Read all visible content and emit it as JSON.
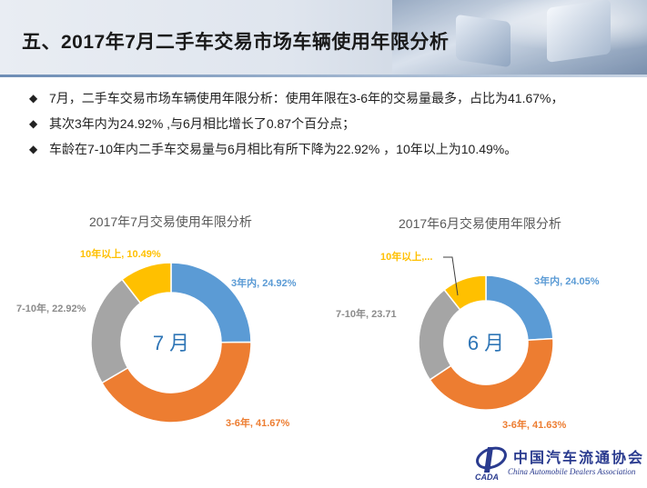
{
  "title": "五、2017年7月二手车交易市场车辆使用年限分析",
  "bullets": [
    "7月，二手车交易市场车辆使用年限分析：使用年限在3-6年的交易量最多，占比为41.67%，",
    "其次3年内为24.92% ,与6月相比增长了0.87个百分点；",
    "车龄在7-10年内二手车交易量与6月相比有所下降为22.92% ，10年以上为10.49%。"
  ],
  "bullet_icon": "◆",
  "colors": {
    "within3": "#5b9bd5",
    "3to6": "#ed7d31",
    "7to10": "#a5a5a5",
    "over10": "#ffc000"
  },
  "chart_data": [
    {
      "type": "pie",
      "variant": "doughnut",
      "title": "2017年7月交易使用年限分析",
      "center_label": "7 月",
      "categories": [
        "3年内",
        "3-6年",
        "7-10年",
        "10年以上"
      ],
      "values": [
        24.92,
        41.67,
        22.92,
        10.49
      ],
      "data_labels": [
        "3年内, 24.92%",
        "3-6年, 41.67%",
        "7-10年, 22.92%",
        "10年以上, 10.49%"
      ]
    },
    {
      "type": "pie",
      "variant": "doughnut",
      "title": "2017年6月交易使用年限分析",
      "center_label": "6 月",
      "categories": [
        "3年内",
        "3-6年",
        "7-10年",
        "10年以上"
      ],
      "values": [
        24.05,
        41.63,
        23.71,
        10.61
      ],
      "data_labels": [
        "3年内, 24.05%",
        "3-6年, 41.63%",
        "7-10年, 23.71",
        "10年以上,..."
      ]
    }
  ],
  "footer": {
    "org_cn": "中国汽车流通协会",
    "org_en": "China Automobile Dealers Association",
    "logo_text": "CADA"
  }
}
